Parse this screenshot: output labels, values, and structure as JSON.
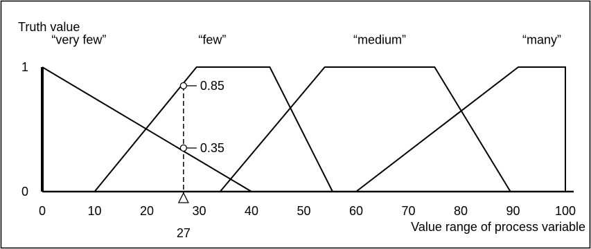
{
  "chart_data": {
    "type": "line",
    "ylabel": "Truth value",
    "xlabel": "Value range of process variable",
    "xlim": [
      0,
      100
    ],
    "ylim": [
      0,
      1
    ],
    "x_ticks": [
      0,
      10,
      20,
      30,
      40,
      50,
      60,
      70,
      80,
      90,
      100
    ],
    "y_ticks": [
      0,
      1
    ],
    "grid": false,
    "series": [
      {
        "name": "“very few”",
        "points": [
          [
            0,
            1
          ],
          [
            40,
            0
          ]
        ]
      },
      {
        "name": "“few”",
        "points": [
          [
            10,
            0
          ],
          [
            29.5,
            1
          ],
          [
            43.5,
            1
          ],
          [
            55.5,
            0
          ]
        ]
      },
      {
        "name": "“medium”",
        "points": [
          [
            34,
            0
          ],
          [
            54,
            1
          ],
          [
            75,
            1
          ],
          [
            89.5,
            0
          ]
        ]
      },
      {
        "name": "“many”",
        "points": [
          [
            60,
            0
          ],
          [
            91,
            1
          ],
          [
            100,
            1
          ],
          [
            100,
            0
          ]
        ]
      }
    ],
    "annotations": {
      "marker_x": 27,
      "marker_x_label": "27",
      "values": [
        {
          "y": 0.85,
          "label": "0.85"
        },
        {
          "y": 0.35,
          "label": "0.35"
        }
      ]
    }
  }
}
